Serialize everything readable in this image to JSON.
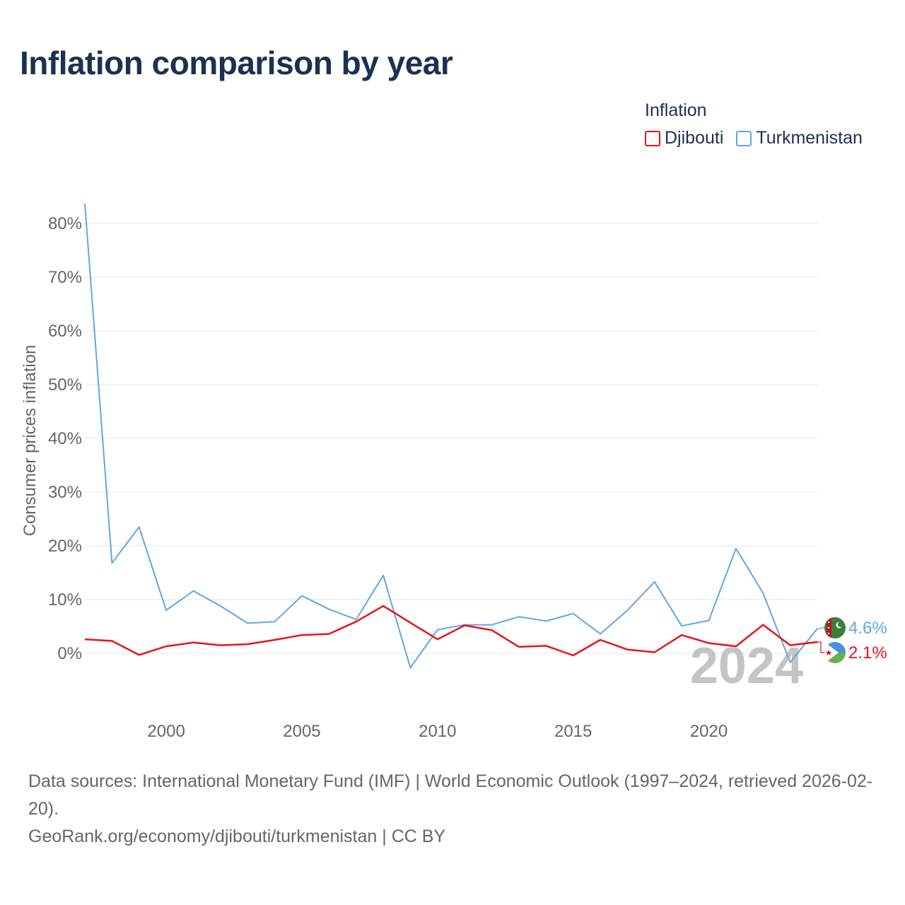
{
  "title": "Inflation comparison by year",
  "legend": {
    "title": "Inflation",
    "items": [
      {
        "label": "Djibouti",
        "color": "#e8141b"
      },
      {
        "label": "Turkmenistan",
        "color": "#62a6e4"
      }
    ]
  },
  "chart_data": {
    "type": "line",
    "ylabel": "Consumer prices inflation",
    "xlabel": "",
    "x": [
      1997,
      1998,
      1999,
      2000,
      2001,
      2002,
      2003,
      2004,
      2005,
      2006,
      2007,
      2008,
      2009,
      2010,
      2011,
      2012,
      2013,
      2014,
      2015,
      2016,
      2017,
      2018,
      2019,
      2020,
      2021,
      2022,
      2023,
      2024
    ],
    "xticks": [
      2000,
      2005,
      2010,
      2015,
      2020
    ],
    "xtick_labels": [
      "2000",
      "2005",
      "2010",
      "2015",
      "2020"
    ],
    "xlim": [
      1997,
      2024
    ],
    "ylim": [
      -10,
      85
    ],
    "yticks": [
      0,
      10,
      20,
      30,
      40,
      50,
      60,
      70,
      80
    ],
    "ytick_labels": [
      "0%",
      "10%",
      "20%",
      "30%",
      "40%",
      "50%",
      "60%",
      "70%",
      "80%"
    ],
    "grid": true,
    "current_year_label": "2024",
    "series": [
      {
        "name": "Djibouti",
        "color": "#e8141b",
        "end_label": "2.1%",
        "values": [
          2.6,
          2.3,
          -0.3,
          1.3,
          2.0,
          1.5,
          1.7,
          2.5,
          3.4,
          3.6,
          5.9,
          8.8,
          5.7,
          2.6,
          5.2,
          4.3,
          1.2,
          1.4,
          -0.4,
          2.5,
          0.7,
          0.2,
          3.4,
          1.9,
          1.3,
          5.3,
          1.5,
          2.1
        ]
      },
      {
        "name": "Turkmenistan",
        "color": "#62a6e4",
        "end_label": "4.6%",
        "values": [
          83.7,
          16.8,
          23.5,
          8.0,
          11.6,
          8.8,
          5.6,
          5.9,
          10.7,
          8.2,
          6.3,
          14.5,
          -2.7,
          4.4,
          5.3,
          5.3,
          6.8,
          6.0,
          7.4,
          3.6,
          8.0,
          13.3,
          5.1,
          6.1,
          19.5,
          11.2,
          -1.7,
          4.6
        ]
      }
    ]
  },
  "footer": {
    "sources": "Data sources: International Monetary Fund (IMF) | World Economic Outlook (1997–2024, retrieved 2026-02-20).",
    "credit": "GeoRank.org/economy/djibouti/turkmenistan | CC BY"
  }
}
